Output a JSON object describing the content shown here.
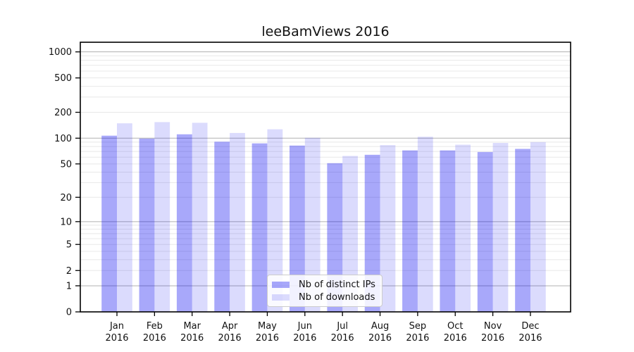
{
  "title": "leeBamViews 2016",
  "legend": {
    "items": [
      {
        "label": "Nb of distinct IPs",
        "color": "rgba(0,0,240,0.34)"
      },
      {
        "label": "Nb of downloads",
        "color": "rgba(0,0,240,0.14)"
      }
    ]
  },
  "chart_data": {
    "type": "bar",
    "title": "leeBamViews 2016",
    "categories": [
      "Jan",
      "Feb",
      "Mar",
      "Apr",
      "May",
      "Jun",
      "Jul",
      "Aug",
      "Sep",
      "Oct",
      "Nov",
      "Dec"
    ],
    "year": "2016",
    "series": [
      {
        "name": "Nb of distinct IPs",
        "color": "rgba(0,0,240,0.34)",
        "values": [
          107,
          99,
          111,
          91,
          87,
          82,
          51,
          64,
          72,
          72,
          69,
          75
        ]
      },
      {
        "name": "Nb of downloads",
        "color": "rgba(0,0,240,0.14)",
        "values": [
          149,
          154,
          151,
          115,
          127,
          101,
          62,
          83,
          104,
          84,
          88,
          90
        ]
      }
    ],
    "yscale": "log1p",
    "ylim": [
      0,
      1292
    ],
    "yticks": [
      0,
      1,
      2,
      5,
      10,
      20,
      50,
      100,
      200,
      500,
      1000
    ],
    "ymajor_grid": [
      1,
      10,
      100,
      1000
    ],
    "yminor_grid": [
      2,
      3,
      4,
      5,
      6,
      7,
      8,
      9,
      20,
      30,
      40,
      50,
      60,
      70,
      80,
      90,
      200,
      300,
      400,
      500,
      600,
      700,
      800,
      900
    ],
    "grid": {
      "major_color": "#b0b0b0",
      "minor_color": "#e8e8e8"
    },
    "axis_color": "#000000",
    "legend_position": "lower center inside"
  }
}
